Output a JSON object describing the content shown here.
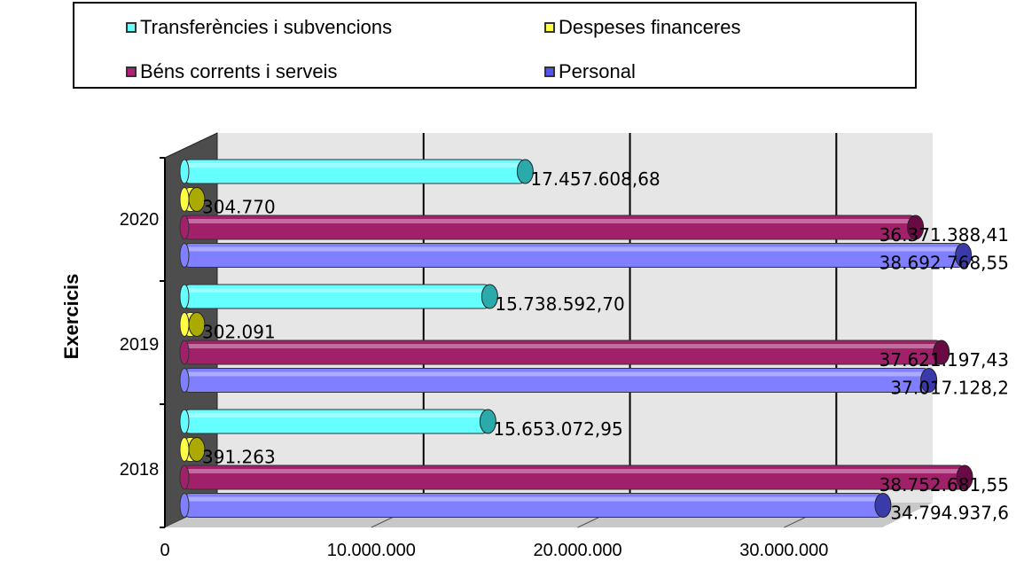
{
  "chart_data": {
    "type": "bar",
    "orientation": "horizontal",
    "categories": [
      "2018",
      "2019",
      "2020"
    ],
    "ylabel": "Exercicis",
    "xlabel": "",
    "xlim": [
      0,
      36000000
    ],
    "xticks": [
      {
        "value": 0,
        "label": "0"
      },
      {
        "value": 10000000,
        "label": "10.000.000"
      },
      {
        "value": 20000000,
        "label": "20.000.000"
      },
      {
        "value": 30000000,
        "label": "30.000.000"
      }
    ],
    "legend_position": "top",
    "grid": true,
    "series": [
      {
        "name": "Transferències i subvencions",
        "color": "#66ffff",
        "values": [
          15653072.95,
          15738592.7,
          17457608.68
        ],
        "labels": [
          "15.653.072,95",
          "15.738.592,70",
          "17.457.608,68"
        ]
      },
      {
        "name": "Despeses financeres",
        "color": "#ffff44",
        "values": [
          391263,
          302091,
          304770
        ],
        "labels": [
          "391.263",
          "302.091",
          "304.770"
        ]
      },
      {
        "name": "Béns corrents i serveis",
        "color": "#a0206a",
        "values": [
          38752681.55,
          37621197.43,
          36371388.41
        ],
        "labels": [
          "38.752.681,55",
          "37.621.197,43",
          "36.371.388,41"
        ]
      },
      {
        "name": "Personal",
        "color": "#7f7fff",
        "values": [
          34794937.6,
          37017128.2,
          38692768.55
        ],
        "labels": [
          "34.794.937,6",
          "37.017.128,2",
          "38.692.768,55"
        ]
      }
    ]
  }
}
